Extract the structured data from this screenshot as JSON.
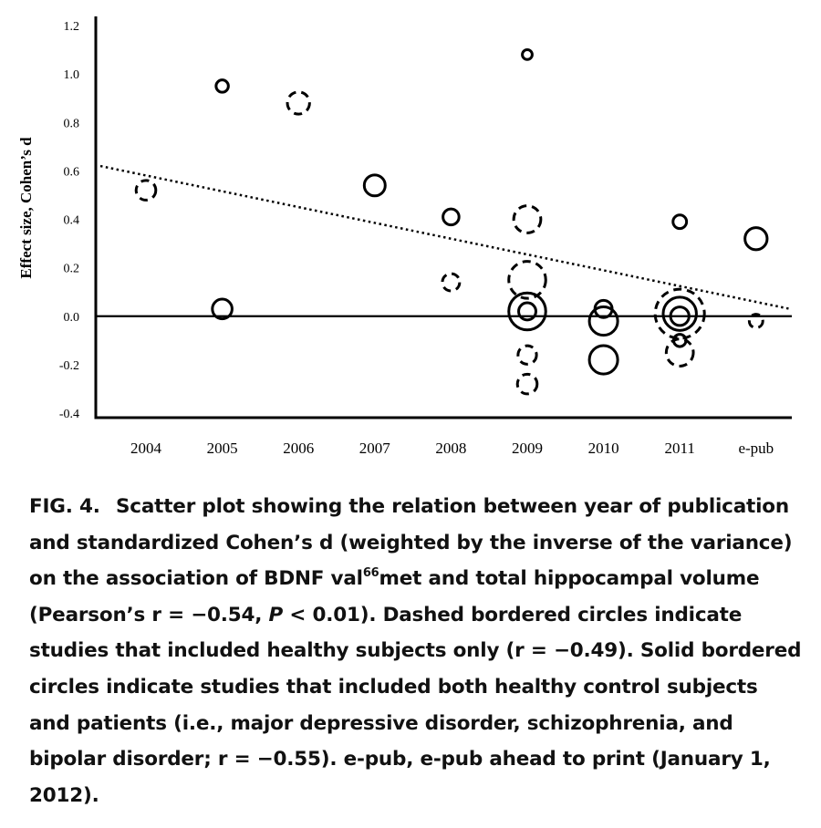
{
  "chart_data": {
    "type": "scatter",
    "title": "",
    "ylabel": "Effect size, Cohen’s d",
    "xlabel": "",
    "categories": [
      "2004",
      "2005",
      "2006",
      "2007",
      "2008",
      "2009",
      "2010",
      "2011",
      "e-pub"
    ],
    "ylim": [
      -0.4,
      1.2
    ],
    "yticks": [
      "1.2",
      "1.0",
      "0.8",
      "0.6",
      "0.4",
      "0.2",
      "0.0",
      "-0.2",
      "-0.4"
    ],
    "grid": false,
    "legend": "none",
    "reference_line_y": 0,
    "trendline": {
      "style": "dotted",
      "start": {
        "x": "2004",
        "y": 0.62
      },
      "end": {
        "x": "e-pub",
        "y": 0.03
      }
    },
    "points": [
      {
        "x": "2004",
        "y": 0.52,
        "size": 0.8,
        "border": "dashed"
      },
      {
        "x": "2005",
        "y": 0.95,
        "size": 0.5,
        "border": "solid"
      },
      {
        "x": "2005",
        "y": 0.03,
        "size": 0.8,
        "border": "solid"
      },
      {
        "x": "2006",
        "y": 0.88,
        "size": 0.9,
        "border": "dashed"
      },
      {
        "x": "2007",
        "y": 0.54,
        "size": 0.85,
        "border": "solid"
      },
      {
        "x": "2008",
        "y": 0.41,
        "size": 0.65,
        "border": "solid"
      },
      {
        "x": "2008",
        "y": 0.14,
        "size": 0.7,
        "border": "dashed"
      },
      {
        "x": "2009",
        "y": 1.08,
        "size": 0.4,
        "border": "solid"
      },
      {
        "x": "2009",
        "y": 0.4,
        "size": 1.1,
        "border": "dashed"
      },
      {
        "x": "2009",
        "y": 0.15,
        "size": 1.5,
        "border": "dashed"
      },
      {
        "x": "2009",
        "y": 0.02,
        "size": 1.5,
        "border": "solid"
      },
      {
        "x": "2009",
        "y": 0.02,
        "size": 0.7,
        "border": "solid"
      },
      {
        "x": "2009",
        "y": -0.16,
        "size": 0.75,
        "border": "dashed"
      },
      {
        "x": "2009",
        "y": -0.28,
        "size": 0.8,
        "border": "dashed"
      },
      {
        "x": "2010",
        "y": 0.03,
        "size": 0.7,
        "border": "solid"
      },
      {
        "x": "2010",
        "y": -0.02,
        "size": 1.15,
        "border": "solid"
      },
      {
        "x": "2010",
        "y": -0.18,
        "size": 1.15,
        "border": "solid"
      },
      {
        "x": "2011",
        "y": 0.39,
        "size": 0.55,
        "border": "solid"
      },
      {
        "x": "2011",
        "y": 0.01,
        "size": 2.0,
        "border": "dashed"
      },
      {
        "x": "2011",
        "y": 0.01,
        "size": 1.35,
        "border": "solid"
      },
      {
        "x": "2011",
        "y": 0.0,
        "size": 0.75,
        "border": "solid"
      },
      {
        "x": "2011",
        "y": -0.1,
        "size": 0.5,
        "border": "solid"
      },
      {
        "x": "2011",
        "y": -0.15,
        "size": 1.1,
        "border": "dashed"
      },
      {
        "x": "e-pub",
        "y": 0.32,
        "size": 0.9,
        "border": "solid"
      },
      {
        "x": "e-pub",
        "y": -0.02,
        "size": 0.55,
        "border": "dashed"
      }
    ]
  },
  "caption": {
    "label": "FIG.  4.",
    "text_1": "Scatter plot showing the relation between year of publication and standardized Cohen’s d (weighted by the inverse of the variance) on the association of BDNF val",
    "sup": "66",
    "text_2": "met and total hippocampal volume (Pearson’s r = −0.54, ",
    "p_symbol": "P",
    "text_3": " < 0.01). Dashed bordered circles indicate studies that included healthy subjects only (r = −0.49). Solid bordered circles indicate studies that included both healthy control subjects and patients (i.e., major depressive disorder, schizophrenia, and bipolar disorder; r = −0.55). e-pub, e-pub ahead to print (January 1, 2012)."
  }
}
